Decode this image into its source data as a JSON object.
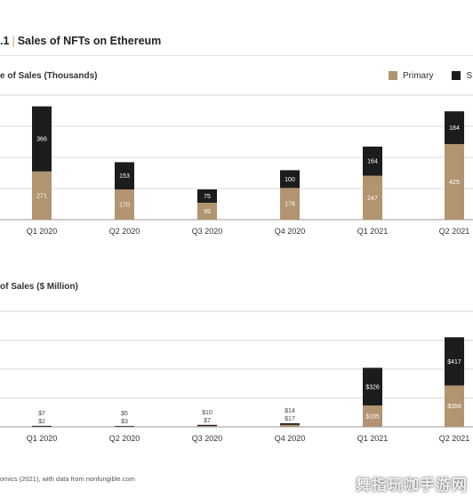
{
  "figure": {
    "number_fragment": ".1",
    "title": "Sales of NFTs on Ethereum"
  },
  "legend": {
    "items": [
      {
        "label": "Primary",
        "color": "#b19470"
      },
      {
        "label": "S",
        "color": "#1c1c1c"
      }
    ]
  },
  "source_text": "omics (2021), with data from nonfungible.com",
  "watermark": "舞指玩咖手游网",
  "chart_data": [
    {
      "type": "bar",
      "stacked": true,
      "title": "e of Sales (Thousands)",
      "categories": [
        "Q1 2020",
        "Q2 2020",
        "Q3 2020",
        "Q4 2020",
        "Q1 2021",
        "Q2 2021"
      ],
      "series": [
        {
          "name": "Primary",
          "color": "#b19470",
          "values": [
            271,
            170,
            95,
            178,
            247,
            425
          ],
          "labels": [
            "271",
            "170",
            "95",
            "178",
            "247",
            "425"
          ]
        },
        {
          "name": "S",
          "color": "#1c1c1c",
          "values": [
            366,
            153,
            75,
            100,
            164,
            184
          ],
          "labels": [
            "366",
            "153",
            "75",
            "100",
            "164",
            "184"
          ]
        }
      ],
      "ylim": [
        0,
        700
      ],
      "grid": true
    },
    {
      "type": "bar",
      "stacked": true,
      "title": "of Sales ($ Million)",
      "categories": [
        "Q1 2020",
        "Q2 2020",
        "Q3 2020",
        "Q4 2020",
        "Q1 2021",
        "Q2 2021"
      ],
      "series": [
        {
          "name": "Primary",
          "color": "#b19470",
          "values": [
            2,
            3,
            7,
            17,
            185,
            358
          ],
          "labels": [
            "$2",
            "$3",
            "$7",
            "$17",
            "$185",
            "$358"
          ]
        },
        {
          "name": "S",
          "color": "#1c1c1c",
          "values": [
            7,
            5,
            10,
            14,
            326,
            417
          ],
          "labels": [
            "$7",
            "$5",
            "$10",
            "$14",
            "$326",
            "$417"
          ]
        }
      ],
      "ylim": [
        0,
        1000
      ],
      "grid": true
    }
  ]
}
